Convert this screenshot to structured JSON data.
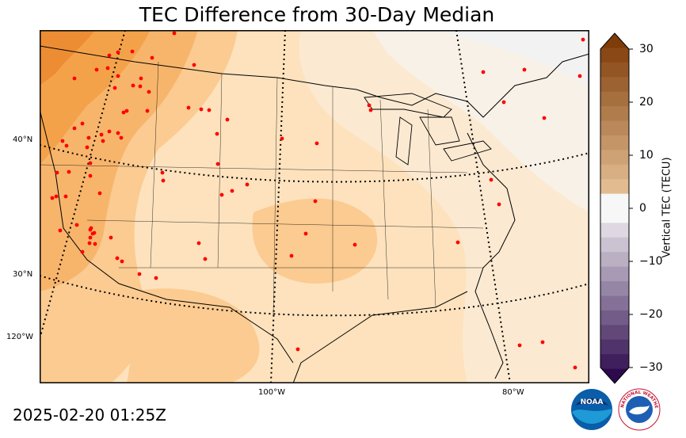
{
  "title": "TEC Difference from 30-Day Median",
  "timestamp": "2025-02-20 01:25Z",
  "map": {
    "latitude_labels": [
      "40°N",
      "30°N"
    ],
    "longitude_labels": [
      "120°W",
      "100°W",
      "80°W"
    ],
    "station_color": "#ff0000",
    "background_color": "#fde5c4",
    "field_colors": [
      "#f4a24a",
      "#f7b56c",
      "#fbcb91",
      "#fde2bd",
      "#f9f1e6",
      "#f5f3f1"
    ]
  },
  "colorbar": {
    "label": "Vertical TEC (TECU)",
    "ticks": [
      "30",
      "20",
      "10",
      "0",
      "−10",
      "−20",
      "−30"
    ],
    "min": -30,
    "max": 30,
    "low_color": "#2d0a4d",
    "mid_color": "#f7f7f7",
    "high_color": "#7f3b08"
  },
  "logos": {
    "noaa": "NOAA",
    "nws": "NATIONAL WEATHER SERVICE"
  }
}
